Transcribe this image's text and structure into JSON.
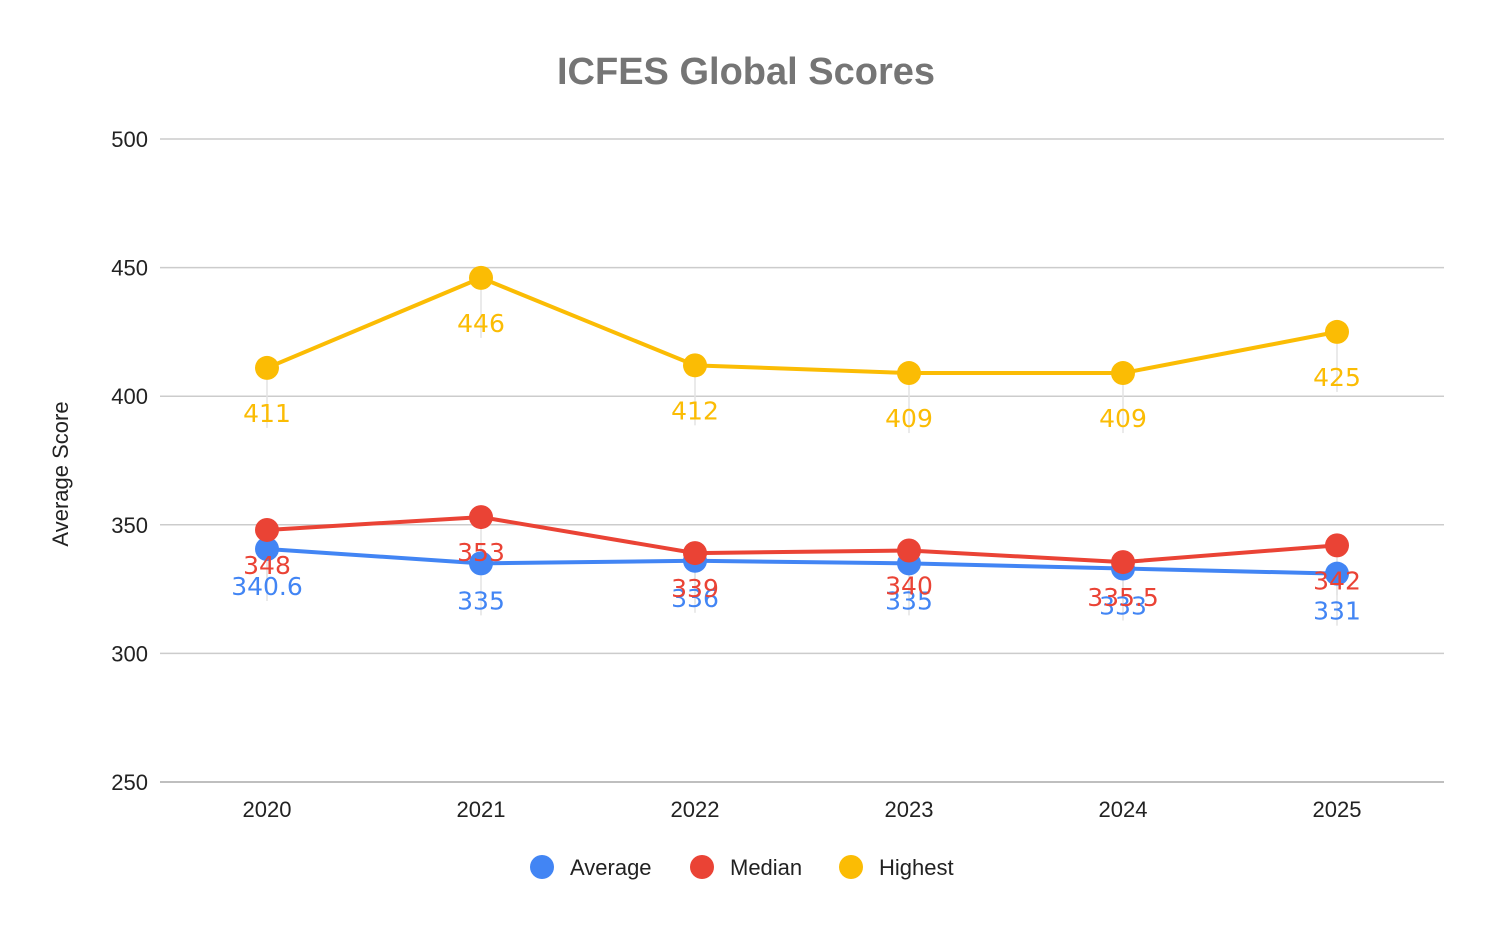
{
  "chart_data": {
    "type": "line",
    "title": "ICFES Global Scores",
    "xlabel": "",
    "ylabel": "Average Score",
    "ylim": [
      250,
      500
    ],
    "yticks": [
      250,
      300,
      350,
      400,
      450,
      500
    ],
    "grid": true,
    "legend_position": "bottom",
    "categories": [
      "2020",
      "2021",
      "2022",
      "2023",
      "2024",
      "2025"
    ],
    "series": [
      {
        "name": "Average",
        "color": "#4285F4",
        "values": [
          340.6,
          335,
          336,
          335,
          333,
          331
        ],
        "labels": [
          "340.6",
          "335",
          "336",
          "335",
          "333",
          "331"
        ]
      },
      {
        "name": "Median",
        "color": "#EA4335",
        "values": [
          348,
          353,
          339,
          340,
          335.5,
          342
        ],
        "labels": [
          "348",
          "353",
          "339",
          "340",
          "335.5",
          "342"
        ]
      },
      {
        "name": "Highest",
        "color": "#FBBC04",
        "values": [
          411,
          446,
          412,
          409,
          409,
          425
        ],
        "labels": [
          "411",
          "446",
          "412",
          "409",
          "409",
          "425"
        ]
      }
    ]
  }
}
